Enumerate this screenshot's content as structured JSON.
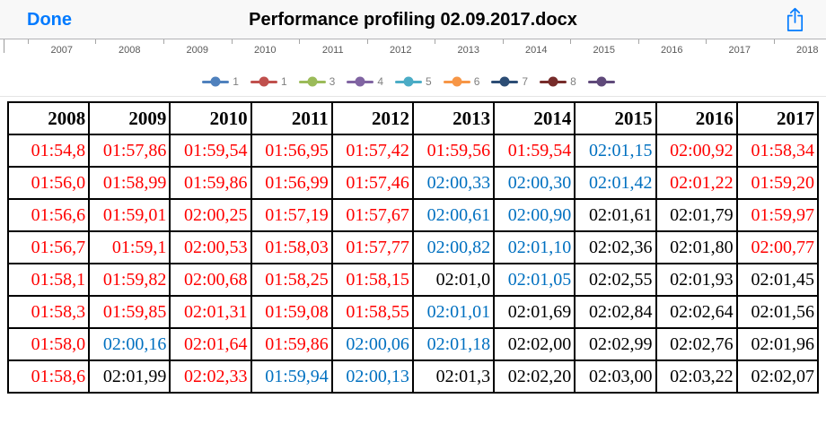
{
  "top_bar": {
    "done_label": "Done",
    "title": "Performance profiling 02.09.2017.docx"
  },
  "chart": {
    "axis_years": [
      "2007",
      "2008",
      "2009",
      "2010",
      "2011",
      "2012",
      "2013",
      "2014",
      "2015",
      "2016",
      "2017",
      "2018"
    ],
    "legend": [
      {
        "label": "1",
        "color": "#4F81BD"
      },
      {
        "label": "1",
        "color": "#C0504D"
      },
      {
        "label": "3",
        "color": "#9BBB59"
      },
      {
        "label": "4",
        "color": "#8064A2"
      },
      {
        "label": "5",
        "color": "#4BACC6"
      },
      {
        "label": "6",
        "color": "#F79646"
      },
      {
        "label": "7",
        "color": "#2C4D75"
      },
      {
        "label": "8",
        "color": "#772C2A"
      },
      {
        "label": "",
        "color": "#5F497A"
      }
    ]
  },
  "colors": {
    "red": "#FF0000",
    "blue": "#0070C0",
    "black": "#000000",
    "accent_blue": "#007AFF"
  },
  "table": {
    "headers": [
      "2008",
      "2009",
      "2010",
      "2011",
      "2012",
      "2013",
      "2014",
      "2015",
      "2016",
      "2017"
    ],
    "rows": [
      [
        {
          "v": "01:54,8",
          "c": "red"
        },
        {
          "v": "01:57,86",
          "c": "red"
        },
        {
          "v": "01:59,54",
          "c": "red"
        },
        {
          "v": "01:56,95",
          "c": "red"
        },
        {
          "v": "01:57,42",
          "c": "red"
        },
        {
          "v": "01:59,56",
          "c": "red"
        },
        {
          "v": "01:59,54",
          "c": "red"
        },
        {
          "v": "02:01,15",
          "c": "blue"
        },
        {
          "v": "02:00,92",
          "c": "red"
        },
        {
          "v": "01:58,34",
          "c": "red"
        }
      ],
      [
        {
          "v": "01:56,0",
          "c": "red"
        },
        {
          "v": "01:58,99",
          "c": "red"
        },
        {
          "v": "01:59,86",
          "c": "red"
        },
        {
          "v": "01:56,99",
          "c": "red"
        },
        {
          "v": "01:57,46",
          "c": "red"
        },
        {
          "v": "02:00,33",
          "c": "blue"
        },
        {
          "v": "02:00,30",
          "c": "blue"
        },
        {
          "v": "02:01,42",
          "c": "blue"
        },
        {
          "v": "02:01,22",
          "c": "red"
        },
        {
          "v": "01:59,20",
          "c": "red"
        }
      ],
      [
        {
          "v": "01:56,6",
          "c": "red"
        },
        {
          "v": "01:59,01",
          "c": "red"
        },
        {
          "v": "02:00,25",
          "c": "red"
        },
        {
          "v": "01:57,19",
          "c": "red"
        },
        {
          "v": "01:57,67",
          "c": "red"
        },
        {
          "v": "02:00,61",
          "c": "blue"
        },
        {
          "v": "02:00,90",
          "c": "blue"
        },
        {
          "v": "02:01,61",
          "c": "black"
        },
        {
          "v": "02:01,79",
          "c": "black"
        },
        {
          "v": "01:59,97",
          "c": "red"
        }
      ],
      [
        {
          "v": "01:56,7",
          "c": "red"
        },
        {
          "v": "01:59,1",
          "c": "red"
        },
        {
          "v": "02:00,53",
          "c": "red"
        },
        {
          "v": "01:58,03",
          "c": "red"
        },
        {
          "v": "01:57,77",
          "c": "red"
        },
        {
          "v": "02:00,82",
          "c": "blue"
        },
        {
          "v": "02:01,10",
          "c": "blue"
        },
        {
          "v": "02:02,36",
          "c": "black"
        },
        {
          "v": "02:01,80",
          "c": "black"
        },
        {
          "v": "02:00,77",
          "c": "red"
        }
      ],
      [
        {
          "v": "01:58,1",
          "c": "red"
        },
        {
          "v": "01:59,82",
          "c": "red"
        },
        {
          "v": "02:00,68",
          "c": "red"
        },
        {
          "v": "01:58,25",
          "c": "red"
        },
        {
          "v": "01:58,15",
          "c": "red"
        },
        {
          "v": "02:01,0",
          "c": "black"
        },
        {
          "v": "02:01,05",
          "c": "blue"
        },
        {
          "v": "02:02,55",
          "c": "black"
        },
        {
          "v": "02:01,93",
          "c": "black"
        },
        {
          "v": "02:01,45",
          "c": "black"
        }
      ],
      [
        {
          "v": "01:58,3",
          "c": "red"
        },
        {
          "v": "01:59,85",
          "c": "red"
        },
        {
          "v": "02:01,31",
          "c": "red"
        },
        {
          "v": "01:59,08",
          "c": "red"
        },
        {
          "v": "01:58,55",
          "c": "red"
        },
        {
          "v": "02:01,01",
          "c": "blue"
        },
        {
          "v": "02:01,69",
          "c": "black"
        },
        {
          "v": "02:02,84",
          "c": "black"
        },
        {
          "v": "02:02,64",
          "c": "black"
        },
        {
          "v": "02:01,56",
          "c": "black"
        }
      ],
      [
        {
          "v": "01:58,0",
          "c": "red"
        },
        {
          "v": "02:00,16",
          "c": "blue"
        },
        {
          "v": "02:01,64",
          "c": "red"
        },
        {
          "v": "01:59,86",
          "c": "red"
        },
        {
          "v": "02:00,06",
          "c": "blue"
        },
        {
          "v": "02:01,18",
          "c": "blue"
        },
        {
          "v": "02:02,00",
          "c": "black"
        },
        {
          "v": "02:02,99",
          "c": "black"
        },
        {
          "v": "02:02,76",
          "c": "black"
        },
        {
          "v": "02:01,96",
          "c": "black"
        }
      ],
      [
        {
          "v": "01:58,6",
          "c": "red"
        },
        {
          "v": "02:01,99",
          "c": "black"
        },
        {
          "v": "02:02,33",
          "c": "red"
        },
        {
          "v": "01:59,94",
          "c": "blue"
        },
        {
          "v": "02:00,13",
          "c": "blue"
        },
        {
          "v": "02:01,3",
          "c": "black"
        },
        {
          "v": "02:02,20",
          "c": "black"
        },
        {
          "v": "02:03,00",
          "c": "black"
        },
        {
          "v": "02:03,22",
          "c": "black"
        },
        {
          "v": "02:02,07",
          "c": "black"
        }
      ]
    ]
  }
}
